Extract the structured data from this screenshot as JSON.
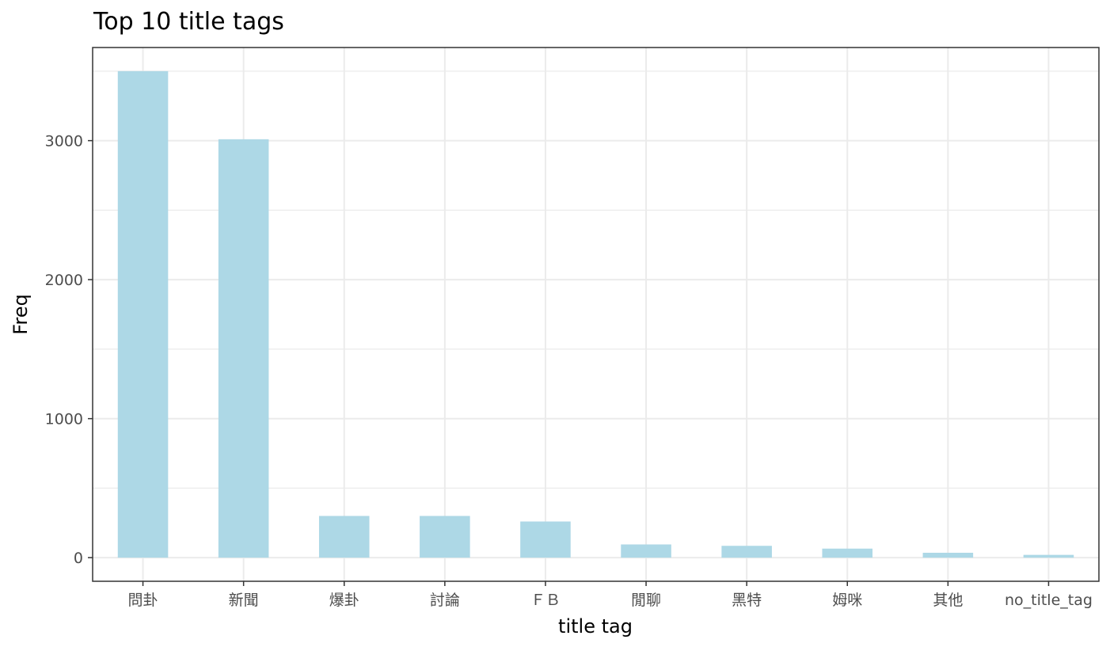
{
  "chart_data": {
    "type": "bar",
    "title": "Top 10 title tags",
    "xlabel": "title tag",
    "ylabel": "Freq",
    "categories": [
      "問卦",
      "新聞",
      "爆卦",
      "討論",
      "ＦＢ",
      "閒聊",
      "黑特",
      "姆咪",
      "其他",
      "no_title_tag"
    ],
    "values": [
      3500,
      3010,
      300,
      300,
      260,
      95,
      85,
      65,
      35,
      20
    ],
    "ylim": [
      -170,
      3670
    ],
    "yticks": [
      0,
      1000,
      2000,
      3000
    ],
    "grid": true,
    "bar_color": "#ADD8E6"
  }
}
